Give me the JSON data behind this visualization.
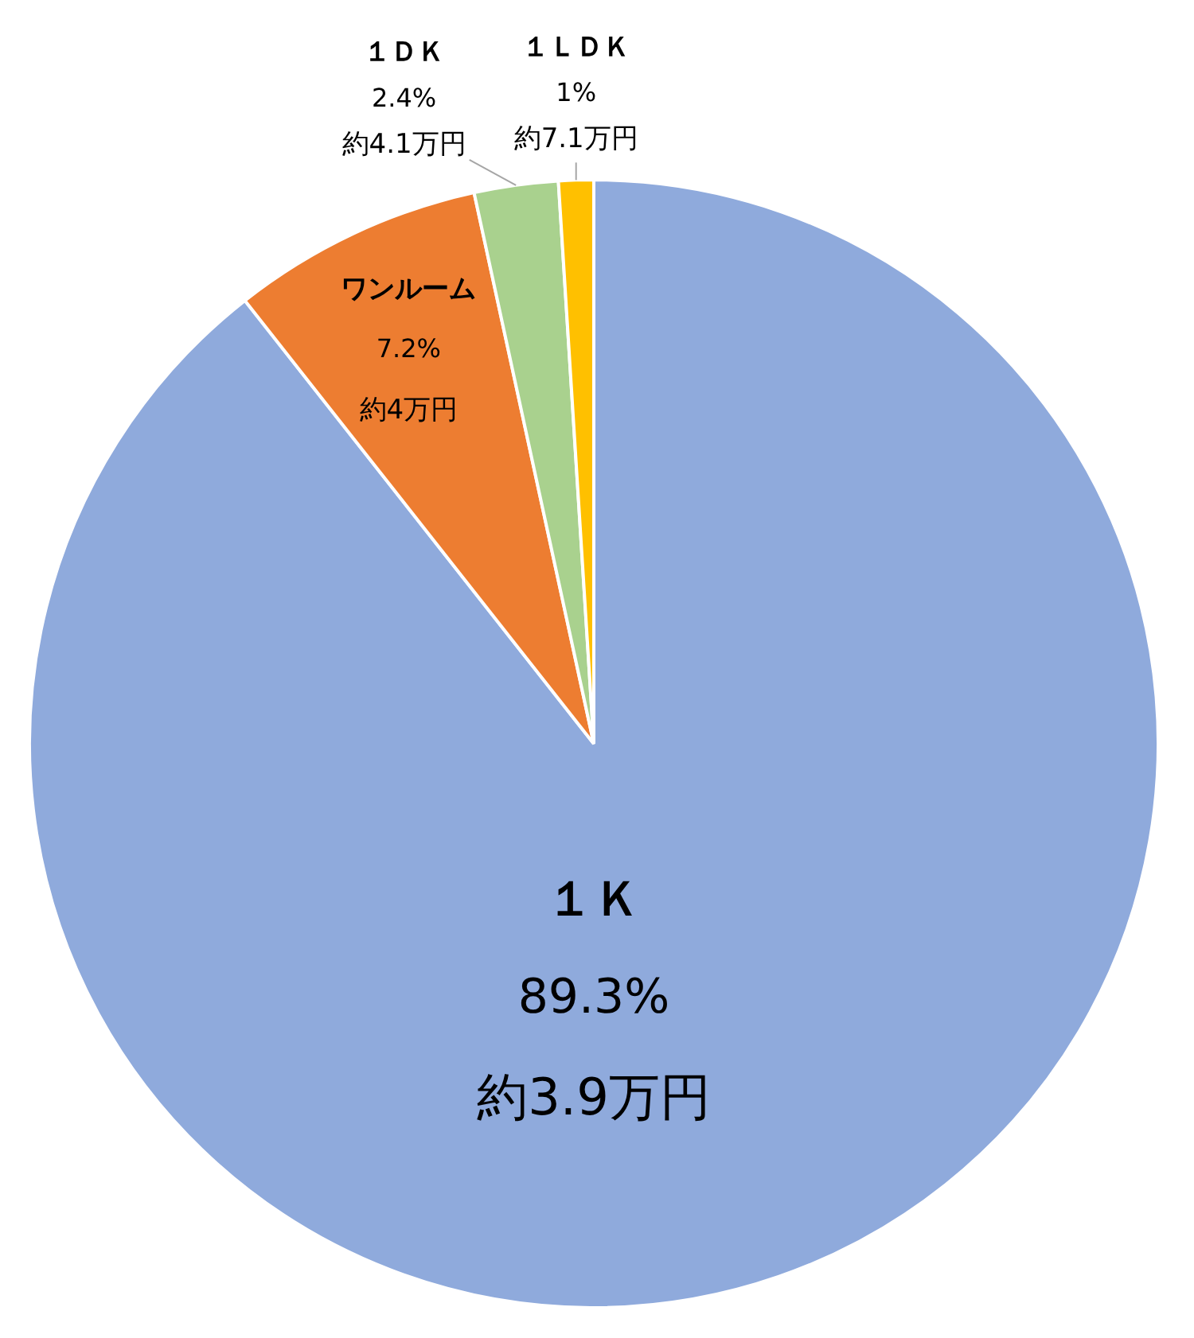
{
  "chart_data": {
    "type": "pie",
    "categories": [
      "１Ｋ",
      "ワンルーム",
      "１ＤＫ",
      "１ＬＤＫ"
    ],
    "values": [
      89.3,
      7.2,
      2.4,
      1
    ],
    "colors": [
      "#8faadc",
      "#ed7d31",
      "#a9d18e",
      "#ffc000"
    ],
    "value_labels": [
      "89.3%",
      "7.2%",
      "2.4%",
      "1%"
    ],
    "annotations": [
      {
        "text": "約3.9万円",
        "x": "１Ｋ"
      },
      {
        "text": "約4万円",
        "x": "ワンルーム"
      },
      {
        "text": "約4.1万円",
        "x": "１ＤＫ"
      },
      {
        "text": "約7.1万円",
        "x": "１ＬＤＫ"
      }
    ]
  }
}
